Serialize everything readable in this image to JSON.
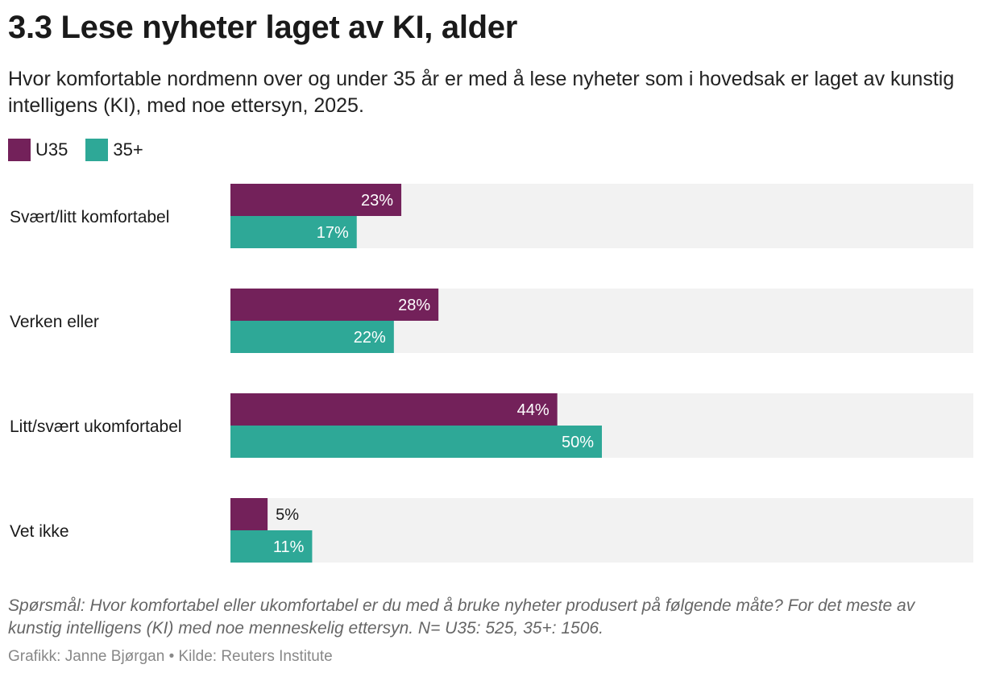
{
  "title": "3.3 Lese nyheter laget av KI, alder",
  "subtitle": "Hvor komfortable nordmenn over og under 35 år er med å lese nyheter som i hovedsak er laget av kunstig intelligens (KI), med noe ettersyn, 2025.",
  "legend": [
    {
      "label": "U35",
      "color": "#73215a"
    },
    {
      "label": "35+",
      "color": "#2ea897"
    }
  ],
  "chart_data": {
    "type": "bar",
    "orientation": "horizontal",
    "categories": [
      "Svært/litt komfortabel",
      "Verken eller",
      "Litt/svært ukomfortabel",
      "Vet ikke"
    ],
    "series": [
      {
        "name": "U35",
        "color": "#73215a",
        "values": [
          23,
          28,
          44,
          5
        ]
      },
      {
        "name": "35+",
        "color": "#2ea897",
        "values": [
          17,
          22,
          50,
          11
        ]
      }
    ],
    "value_suffix": "%",
    "xlim": [
      0,
      100
    ],
    "track_color": "#f2f2f2",
    "grid": false,
    "legend_position": "top-left"
  },
  "note": "Spørsmål: Hvor komfortabel eller ukomfortabel er du med å bruke nyheter produsert på følgende måte? For det meste av kunstig intelligens (KI) med noe menneskelig ettersyn. N= U35: 525, 35+: 1506.",
  "credit": "Grafikk: Janne Bjørgan • Kilde: Reuters Institute"
}
